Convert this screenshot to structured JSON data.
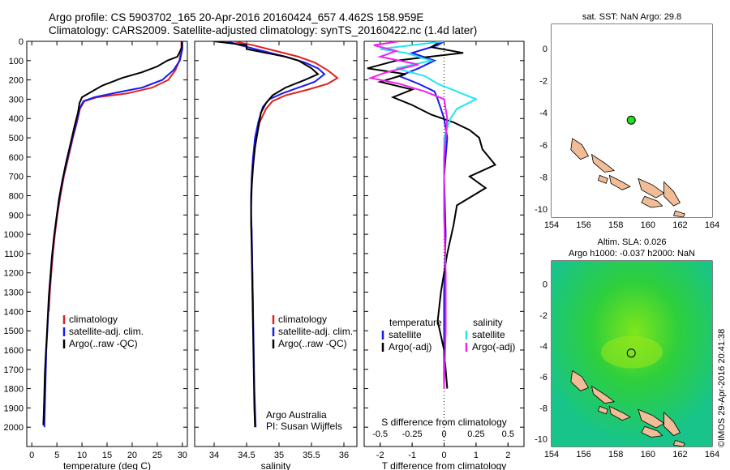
{
  "header": {
    "title_line1": "Argo profile: CS 5903702_165 20-Apr-2016 20160424_657 4.462S 158.959E",
    "title_line2": "Climatology: CARS2009. Satellite-adjusted climatology: synTS_20160422.nc (1.4d later)"
  },
  "credits": {
    "org": "Argo Australia",
    "pi": "PI: Susan Wijffels",
    "imos": "©IMOS 29-Apr-2016 20:41:38"
  },
  "colors": {
    "climatology": "#e02020",
    "satellite": "#1a1aee",
    "argo": "#000000",
    "cyan": "#22e6ee",
    "magenta": "#ee22ee",
    "float_marker": "#22dd22",
    "land": "#f1bc96"
  },
  "chart_data": [
    {
      "type": "line",
      "panel": "temperature",
      "xlabel": "temperature (deg C)",
      "ylabel": "",
      "xlim": [
        -1,
        31
      ],
      "ylim": [
        2100,
        0
      ],
      "x_ticks": [
        0,
        5,
        10,
        15,
        20,
        25,
        30
      ],
      "y_ticks": [
        0,
        100,
        200,
        300,
        400,
        500,
        600,
        700,
        800,
        900,
        1000,
        1100,
        1200,
        1300,
        1400,
        1500,
        1600,
        1700,
        1800,
        1900,
        2000
      ],
      "legend": [
        "climatology",
        "satellite-adj. clim.",
        "Argo(..raw -QC)"
      ],
      "series": [
        {
          "name": "climatology",
          "color": "#e02020",
          "points": [
            [
              29.8,
              0
            ],
            [
              29.8,
              40
            ],
            [
              29.4,
              100
            ],
            [
              28.6,
              150
            ],
            [
              27.2,
              200
            ],
            [
              24,
              240
            ],
            [
              19,
              270
            ],
            [
              13,
              290
            ],
            [
              10.5,
              310
            ],
            [
              9.6,
              350
            ],
            [
              9,
              420
            ],
            [
              8.2,
              500
            ],
            [
              7.3,
              600
            ],
            [
              6.4,
              700
            ],
            [
              5.7,
              800
            ],
            [
              5.1,
              900
            ],
            [
              4.6,
              1000
            ],
            [
              4.2,
              1100
            ],
            [
              3.9,
              1200
            ],
            [
              3.6,
              1300
            ],
            [
              3.4,
              1400
            ]
          ]
        },
        {
          "name": "satellite-adj. clim.",
          "color": "#1a1aee",
          "points": [
            [
              30,
              0
            ],
            [
              30,
              40
            ],
            [
              29.5,
              100
            ],
            [
              28.2,
              150
            ],
            [
              26,
              200
            ],
            [
              22,
              240
            ],
            [
              17,
              265
            ],
            [
              12.5,
              290
            ],
            [
              10.3,
              310
            ],
            [
              9.5,
              350
            ],
            [
              8.9,
              420
            ],
            [
              8.1,
              500
            ],
            [
              7.2,
              600
            ],
            [
              6.3,
              700
            ],
            [
              5.6,
              800
            ],
            [
              5,
              900
            ],
            [
              4.5,
              1000
            ],
            [
              4.1,
              1100
            ],
            [
              3.8,
              1200
            ],
            [
              3.5,
              1300
            ],
            [
              3.3,
              1400
            ],
            [
              3.1,
              1500
            ],
            [
              2.9,
              1600
            ],
            [
              2.8,
              1700
            ],
            [
              2.7,
              1800
            ],
            [
              2.6,
              1900
            ],
            [
              2.5,
              2000
            ]
          ]
        },
        {
          "name": "Argo(..raw -QC)",
          "color": "#000000",
          "points": [
            [
              29.9,
              0
            ],
            [
              29.9,
              30
            ],
            [
              29.4,
              60
            ],
            [
              29,
              80
            ],
            [
              27,
              100
            ],
            [
              25,
              130
            ],
            [
              22,
              160
            ],
            [
              18,
              190
            ],
            [
              14,
              230
            ],
            [
              12,
              260
            ],
            [
              10,
              290
            ],
            [
              9.5,
              320
            ],
            [
              9.2,
              370
            ],
            [
              8.6,
              430
            ],
            [
              7.8,
              520
            ],
            [
              6.9,
              620
            ],
            [
              6.1,
              720
            ],
            [
              5.4,
              820
            ],
            [
              4.9,
              920
            ],
            [
              4.4,
              1020
            ],
            [
              4,
              1120
            ],
            [
              3.7,
              1220
            ],
            [
              3.4,
              1320
            ],
            [
              3.2,
              1420
            ],
            [
              3,
              1520
            ],
            [
              2.8,
              1620
            ],
            [
              2.6,
              1720
            ],
            [
              2.5,
              1820
            ],
            [
              2.4,
              1920
            ],
            [
              2.3,
              1990
            ]
          ]
        }
      ]
    },
    {
      "type": "line",
      "panel": "salinity",
      "xlabel": "salinity",
      "ylabel": "",
      "xlim": [
        33.7,
        36.2
      ],
      "ylim": [
        2100,
        0
      ],
      "x_ticks": [
        34,
        34.5,
        35,
        35.5,
        36
      ],
      "legend": [
        "climatology",
        "satellite-adj. clim.",
        "Argo(..raw -QC)"
      ],
      "series": [
        {
          "name": "climatology",
          "color": "#e02020",
          "points": [
            [
              34.3,
              0
            ],
            [
              34.6,
              20
            ],
            [
              34.95,
              50
            ],
            [
              35.3,
              80
            ],
            [
              35.55,
              110
            ],
            [
              35.75,
              150
            ],
            [
              35.9,
              190
            ],
            [
              35.75,
              220
            ],
            [
              35.45,
              250
            ],
            [
              35.1,
              280
            ],
            [
              34.9,
              310
            ],
            [
              34.8,
              350
            ],
            [
              34.7,
              420
            ],
            [
              34.65,
              500
            ],
            [
              34.6,
              600
            ],
            [
              34.58,
              700
            ],
            [
              34.57,
              800
            ],
            [
              34.57,
              900
            ],
            [
              34.58,
              1000
            ],
            [
              34.59,
              1200
            ],
            [
              34.6,
              1400
            ]
          ]
        },
        {
          "name": "satellite-adj. clim.",
          "color": "#1a1aee",
          "points": [
            [
              34.2,
              0
            ],
            [
              34.4,
              20
            ],
            [
              34.75,
              50
            ],
            [
              35.1,
              80
            ],
            [
              35.4,
              110
            ],
            [
              35.6,
              140
            ],
            [
              35.7,
              170
            ],
            [
              35.55,
              210
            ],
            [
              35.3,
              240
            ],
            [
              35.05,
              270
            ],
            [
              34.85,
              300
            ],
            [
              34.75,
              340
            ],
            [
              34.68,
              420
            ],
            [
              34.63,
              500
            ],
            [
              34.6,
              600
            ],
            [
              34.58,
              700
            ],
            [
              34.57,
              800
            ],
            [
              34.57,
              900
            ],
            [
              34.58,
              1000
            ],
            [
              34.59,
              1200
            ],
            [
              34.6,
              1400
            ],
            [
              34.61,
              1600
            ],
            [
              34.62,
              1800
            ],
            [
              34.64,
              2000
            ]
          ]
        },
        {
          "name": "Argo(..raw -QC)",
          "color": "#000000",
          "points": [
            [
              34.0,
              0
            ],
            [
              34.5,
              20
            ],
            [
              34.5,
              40
            ],
            [
              34.8,
              60
            ],
            [
              35.1,
              80
            ],
            [
              35.3,
              100
            ],
            [
              35.5,
              140
            ],
            [
              35.6,
              170
            ],
            [
              35.4,
              200
            ],
            [
              35.1,
              240
            ],
            [
              34.9,
              280
            ],
            [
              34.8,
              320
            ],
            [
              34.72,
              370
            ],
            [
              34.68,
              450
            ],
            [
              34.63,
              550
            ],
            [
              34.6,
              650
            ],
            [
              34.58,
              750
            ],
            [
              34.57,
              850
            ],
            [
              34.57,
              950
            ],
            [
              34.58,
              1100
            ],
            [
              34.59,
              1300
            ],
            [
              34.6,
              1500
            ],
            [
              34.61,
              1700
            ],
            [
              34.62,
              1900
            ],
            [
              34.63,
              2000
            ]
          ]
        }
      ]
    },
    {
      "type": "line",
      "panel": "differences",
      "xlabel": "T difference from climatology",
      "xlabel_top": "S difference from climatology",
      "xlim": [
        -2.5,
        2.5
      ],
      "ylim": [
        2100,
        0
      ],
      "x_ticks": [
        -2,
        -1,
        0,
        1,
        2
      ],
      "s_ticks": [
        -0.5,
        -0.25,
        0,
        0.25,
        0.5
      ],
      "legend_headers": [
        "temperature",
        "salinity"
      ],
      "legend": [
        "satellite",
        "Argo(-adj)",
        "satellite",
        "Argo(-adj)"
      ],
      "series": [
        {
          "name": "satellite",
          "color": "#1a1aee",
          "points": [
            [
              0,
              0
            ],
            [
              -0.2,
              20
            ],
            [
              -0.6,
              40
            ],
            [
              -1.0,
              60
            ],
            [
              -0.3,
              100
            ],
            [
              -0.8,
              140
            ],
            [
              -1.4,
              180
            ],
            [
              -0.8,
              220
            ],
            [
              -0.3,
              260
            ],
            [
              -0.2,
              300
            ],
            [
              -0.1,
              350
            ],
            [
              0,
              400
            ],
            [
              0.05,
              450
            ],
            [
              0.1,
              500
            ],
            [
              0,
              700
            ],
            [
              0.05,
              1000
            ],
            [
              0,
              1300
            ],
            [
              0,
              1600
            ],
            [
              0,
              1800
            ]
          ]
        },
        {
          "name": "Argo(-adj)",
          "color": "#000000",
          "points": [
            [
              -0.1,
              0
            ],
            [
              -0.4,
              30
            ],
            [
              0.6,
              60
            ],
            [
              -1.5,
              100
            ],
            [
              -2.4,
              140
            ],
            [
              -1.2,
              170
            ],
            [
              -2.0,
              210
            ],
            [
              -1.0,
              250
            ],
            [
              -1.6,
              290
            ],
            [
              -1.0,
              330
            ],
            [
              -0.4,
              380
            ],
            [
              0.3,
              420
            ],
            [
              0.8,
              460
            ],
            [
              1.1,
              500
            ],
            [
              1.2,
              560
            ],
            [
              1.6,
              640
            ],
            [
              0.8,
              700
            ],
            [
              1.3,
              760
            ],
            [
              0.4,
              850
            ],
            [
              0.3,
              950
            ],
            [
              0.1,
              1100
            ],
            [
              -0.1,
              1300
            ],
            [
              -0.2,
              1450
            ],
            [
              0,
              1600
            ],
            [
              0.1,
              1800
            ]
          ]
        },
        {
          "name": "satellite",
          "color": "#22e6ee",
          "points": [
            [
              0,
              0
            ],
            [
              -1.0,
              20
            ],
            [
              -2.0,
              40
            ],
            [
              -1.2,
              60
            ],
            [
              -0.4,
              100
            ],
            [
              -1.5,
              140
            ],
            [
              -0.6,
              180
            ],
            [
              -0.2,
              220
            ],
            [
              0.4,
              260
            ],
            [
              1.0,
              300
            ],
            [
              0.4,
              350
            ],
            [
              0.2,
              400
            ],
            [
              0.1,
              450
            ],
            [
              0,
              500
            ],
            [
              0,
              700
            ]
          ]
        },
        {
          "name": "Argo(-adj)",
          "color": "#ee22ee",
          "points": [
            [
              -1.4,
              0
            ],
            [
              -2.2,
              20
            ],
            [
              -1.5,
              50
            ],
            [
              -2.0,
              80
            ],
            [
              -0.8,
              120
            ],
            [
              -1.8,
              160
            ],
            [
              -2.3,
              190
            ],
            [
              -1.4,
              220
            ],
            [
              -0.6,
              260
            ],
            [
              0,
              300
            ],
            [
              0.1,
              400
            ],
            [
              0,
              600
            ],
            [
              0,
              900
            ],
            [
              0.05,
              1200
            ],
            [
              0.05,
              1500
            ],
            [
              0,
              1800
            ]
          ]
        }
      ]
    },
    {
      "type": "scatter",
      "panel": "sst-map",
      "title": "sat. SST: NaN Argo: 29.8",
      "xlim": [
        154,
        164
      ],
      "ylim": [
        -10.5,
        1.5
      ],
      "x_ticks": [
        154,
        156,
        158,
        160,
        162,
        164
      ],
      "y_ticks": [
        0,
        -2,
        -4,
        -6,
        -8,
        -10
      ],
      "float_position": [
        158.96,
        -4.46
      ]
    },
    {
      "type": "heatmap",
      "panel": "sla-map",
      "title_line1": "Altim. SLA: 0.026",
      "title_line2": "Argo h1000: -0.037 h2000: NaN",
      "xlim": [
        154,
        164
      ],
      "ylim": [
        -10.5,
        1.5
      ],
      "x_ticks": [
        154,
        156,
        158,
        160,
        162,
        164
      ],
      "y_ticks": [
        0,
        -2,
        -4,
        -6,
        -8,
        -10
      ],
      "float_position": [
        158.96,
        -4.46
      ]
    }
  ]
}
